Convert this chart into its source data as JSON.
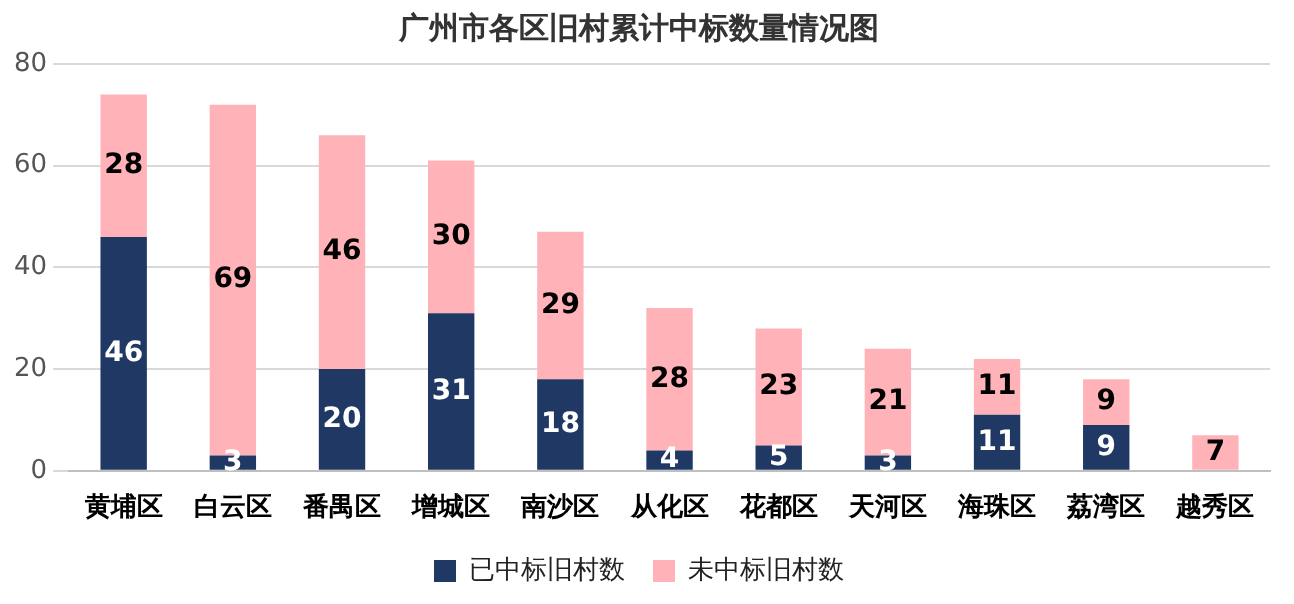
{
  "chart_data": {
    "type": "bar",
    "title": "广州市各区旧村累计中标数量情况图",
    "categories": [
      "黄埔区",
      "白云区",
      "番禺区",
      "增城区",
      "南沙区",
      "从化区",
      "花都区",
      "天河区",
      "海珠区",
      "荔湾区",
      "越秀区"
    ],
    "series": [
      {
        "name": "已中标旧村数",
        "color": "#203864",
        "values": [
          46,
          3,
          20,
          31,
          18,
          4,
          5,
          3,
          11,
          9,
          null
        ]
      },
      {
        "name": "未中标旧村数",
        "color": "#ffb3b8",
        "values": [
          28,
          69,
          46,
          30,
          29,
          28,
          23,
          21,
          11,
          9,
          7
        ]
      }
    ],
    "stacked": true,
    "ylim": [
      0,
      80
    ],
    "yticks": [
      0,
      20,
      40,
      60,
      80
    ],
    "grid": "y",
    "legend": "bottom",
    "data_labels": true
  }
}
